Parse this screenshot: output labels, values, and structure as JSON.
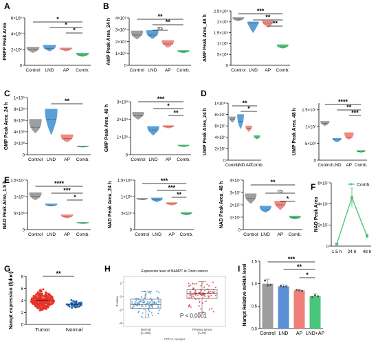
{
  "figure": {
    "background": "#ffffff"
  },
  "colors": {
    "gray": "#9e9e9e",
    "blue": "#5aa0d8",
    "pink": "#f08a80",
    "green": "#4fc47a",
    "tumor": "#e8332a",
    "normal": "#2f6fb0",
    "tumorH": "#e0505a",
    "normalH": "#5a9fd4",
    "barGray": "#9e9e9e",
    "barBlue": "#5b8fd6",
    "barPink": "#f07f7a",
    "barGreen": "#49c67a"
  },
  "chart_data": [
    {
      "panel": "A",
      "type": "violin",
      "ylabel": "PRPP Peak Area",
      "categories": [
        "Control",
        "LND",
        "AP",
        "Comb."
      ],
      "yticks": [
        0,
        2000000,
        4000000,
        6000000
      ],
      "yticklabels": [
        "0",
        "2×10⁶",
        "4×10⁶",
        "6×10⁶"
      ],
      "ylim": [
        0,
        6000000
      ],
      "groups": [
        {
          "mid": 1950000,
          "lo": 1600000,
          "hi": 2300000
        },
        {
          "mid": 2150000,
          "lo": 1800000,
          "hi": 2550000
        },
        {
          "mid": 2050000,
          "lo": 1800000,
          "hi": 2200000
        },
        {
          "mid": 1300000,
          "lo": 1100000,
          "hi": 1550000
        }
      ],
      "brackets": [
        {
          "from": 0,
          "to": 3,
          "label": "*"
        },
        {
          "from": 1,
          "to": 3,
          "label": "*"
        },
        {
          "from": 2,
          "to": 3,
          "label": "*"
        }
      ]
    },
    {
      "panel": "B",
      "type": "violin",
      "ylabel": "AMP Peak Area_24 h",
      "categories": [
        "Control",
        "LND",
        "AP",
        "Comb."
      ],
      "yticks": [
        0,
        1000000000,
        2000000000,
        3000000000,
        4000000000
      ],
      "yticklabels": [
        "0",
        "1×10⁹",
        "2×10⁹",
        "3×10⁹",
        "4×10⁹"
      ],
      "ylim": [
        0,
        4000000000
      ],
      "groups": [
        {
          "mid": 2550000000,
          "lo": 2200000000,
          "hi": 2900000000
        },
        {
          "mid": 2550000000,
          "lo": 2250000000,
          "hi": 2950000000
        },
        {
          "mid": 1800000000,
          "lo": 1500000000,
          "hi": 2100000000
        },
        {
          "mid": 1150000000,
          "lo": 1050000000,
          "hi": 1250000000
        }
      ],
      "brackets": [
        {
          "from": 0,
          "to": 3,
          "label": "**"
        },
        {
          "from": 1,
          "to": 3,
          "label": "**"
        },
        {
          "from": 1,
          "to": 2,
          "label": "ns"
        }
      ]
    },
    {
      "panel": "",
      "type": "violin",
      "ylabel": "AMP Peak Area_48 h",
      "categories": [
        "Control",
        "LND",
        "AP",
        "Comb."
      ],
      "yticks": [
        0,
        500000000,
        1000000000,
        1500000000,
        2000000000,
        2500000000
      ],
      "yticklabels": [
        "0",
        "5×10⁸",
        "1×10⁹",
        "1.5×10⁹",
        "2×10⁹",
        "2.5×10⁹"
      ],
      "ylim": [
        0,
        2500000000
      ],
      "groups": [
        {
          "mid": 2120000000,
          "lo": 2040000000,
          "hi": 2200000000
        },
        {
          "mid": 1950000000,
          "lo": 1500000000,
          "hi": 2000000000
        },
        {
          "mid": 1950000000,
          "lo": 1750000000,
          "hi": 2050000000
        },
        {
          "mid": 850000000,
          "lo": 780000000,
          "hi": 950000000
        }
      ],
      "brackets": [
        {
          "from": 0,
          "to": 3,
          "label": "***"
        },
        {
          "from": 1,
          "to": 3,
          "label": "**"
        },
        {
          "from": 2,
          "to": 3,
          "label": "**"
        }
      ]
    },
    {
      "panel": "C",
      "type": "violin",
      "ylabel": "GMP Peak Area_24 h",
      "categories": [
        "Control",
        "LND",
        "AP",
        "Comb."
      ],
      "yticks": [
        0,
        200000000,
        400000000,
        600000000,
        800000000,
        1000000000
      ],
      "yticklabels": [
        "0",
        "2×10⁸",
        "4×10⁸",
        "6×10⁸",
        "8×10⁸",
        "1×10⁹"
      ],
      "ylim": [
        0,
        1000000000
      ],
      "groups": [
        {
          "mid": 480000000,
          "lo": 380000000,
          "hi": 620000000
        },
        {
          "mid": 620000000,
          "lo": 350000000,
          "hi": 800000000
        },
        {
          "mid": 280000000,
          "lo": 220000000,
          "hi": 350000000
        },
        {
          "mid": 140000000,
          "lo": 130000000,
          "hi": 150000000
        }
      ],
      "brackets": [
        {
          "from": 1,
          "to": 3,
          "label": "**"
        }
      ]
    },
    {
      "panel": "",
      "type": "violin",
      "ylabel": "GMP Peak Area_48 h",
      "categories": [
        "Control",
        "LND",
        "AP",
        "Comb."
      ],
      "yticks": [
        0,
        100000000,
        200000000,
        300000000
      ],
      "yticklabels": [
        "0",
        "1×10⁸",
        "2×10⁸",
        "3×10⁸"
      ],
      "ylim": [
        0,
        300000000
      ],
      "groups": [
        {
          "mid": 220000000,
          "lo": 200000000,
          "hi": 240000000
        },
        {
          "mid": 140000000,
          "lo": 110000000,
          "hi": 160000000
        },
        {
          "mid": 158000000,
          "lo": 150000000,
          "hi": 165000000
        },
        {
          "mid": 50000000,
          "lo": 45000000,
          "hi": 55000000
        }
      ],
      "brackets": [
        {
          "from": 0,
          "to": 3,
          "label": "***"
        },
        {
          "from": 1,
          "to": 3,
          "label": "*"
        },
        {
          "from": 2,
          "to": 3,
          "label": "**"
        }
      ]
    },
    {
      "panel": "D",
      "type": "violin",
      "ylabel": "UMP Peak Area_24 h",
      "categories": [
        "Control",
        "LND",
        "AP",
        "Comb."
      ],
      "yticks": [
        0,
        20000000,
        40000000,
        60000000,
        80000000,
        100000000
      ],
      "yticklabels": [
        "0",
        "2×10⁷",
        "4×10⁷",
        "6×10⁷",
        "8×10⁷",
        "1×10⁸"
      ],
      "ylim": [
        0,
        100000000
      ],
      "groups": [
        {
          "mid": 72000000,
          "lo": 66000000,
          "hi": 76000000
        },
        {
          "mid": 68000000,
          "lo": 55000000,
          "hi": 80000000
        },
        {
          "mid": 56000000,
          "lo": 50000000,
          "hi": 60000000
        },
        {
          "mid": 40000000,
          "lo": 37000000,
          "hi": 43000000
        }
      ],
      "brackets": [
        {
          "from": 0,
          "to": 3,
          "label": "**"
        },
        {
          "from": 1,
          "to": 3,
          "label": "*"
        }
      ]
    },
    {
      "panel": "",
      "type": "violin",
      "ylabel": "UMP Peak Area_48 h",
      "categories": [
        "Control",
        "LND",
        "AP",
        "Comb."
      ],
      "yticks": [
        0,
        5000000,
        10000000,
        15000000
      ],
      "yticklabels": [
        "0",
        "5×10⁶",
        "1×10⁷",
        "1.5×10⁷"
      ],
      "ylim": [
        0,
        17000000
      ],
      "groups": [
        {
          "mid": 11000000,
          "lo": 10200000,
          "hi": 11600000
        },
        {
          "mid": 6000000,
          "lo": 5400000,
          "hi": 6500000
        },
        {
          "mid": 6800000,
          "lo": 6200000,
          "hi": 8200000
        },
        {
          "mid": 2600000,
          "lo": 2300000,
          "hi": 2900000
        }
      ],
      "brackets": [
        {
          "from": 0,
          "to": 3,
          "label": "****"
        },
        {
          "from": 1,
          "to": 3,
          "label": "**"
        },
        {
          "from": 2,
          "to": 3,
          "label": "***"
        }
      ]
    },
    {
      "panel": "E",
      "type": "violin",
      "ylabel": "NAD Peak Area_1.5 h",
      "categories": [
        "Control",
        "LND",
        "AP",
        "Comb."
      ],
      "yticks": [
        0,
        5000000,
        10000000,
        15000000
      ],
      "yticklabels": [
        "0",
        "5×10⁶",
        "1×10⁷",
        "1.5×10⁷"
      ],
      "ylim": [
        0,
        15000000
      ],
      "groups": [
        {
          "mid": 10000000,
          "lo": 9000000,
          "hi": 11200000
        },
        {
          "mid": 7400000,
          "lo": 7100000,
          "hi": 7800000
        },
        {
          "mid": 4000000,
          "lo": 3500000,
          "hi": 4500000
        },
        {
          "mid": 2000000,
          "lo": 1800000,
          "hi": 2200000
        }
      ],
      "brackets": [
        {
          "from": 0,
          "to": 3,
          "label": "****"
        },
        {
          "from": 1,
          "to": 3,
          "label": "***"
        },
        {
          "from": 2,
          "to": 3,
          "label": "*"
        }
      ]
    },
    {
      "panel": "",
      "type": "violin",
      "ylabel": "NAD Peak Area_24 h",
      "categories": [
        "Control",
        "LND",
        "AP",
        "Comb."
      ],
      "yticks": [
        0,
        50000000,
        100000000,
        150000000
      ],
      "yticklabels": [
        "0",
        "5×10⁷",
        "1×10⁸",
        "1.5×10⁸"
      ],
      "ylim": [
        0,
        150000000
      ],
      "groups": [
        {
          "mid": 92000000,
          "lo": 90000000,
          "hi": 95000000
        },
        {
          "mid": 90000000,
          "lo": 84000000,
          "hi": 96000000
        },
        {
          "mid": 78000000,
          "lo": 74000000,
          "hi": 82000000
        },
        {
          "mid": 48000000,
          "lo": 44000000,
          "hi": 52000000
        }
      ],
      "brackets": [
        {
          "from": 0,
          "to": 3,
          "label": "***"
        },
        {
          "from": 1,
          "to": 3,
          "label": "***"
        },
        {
          "from": 2,
          "to": 3,
          "label": "**"
        }
      ]
    },
    {
      "panel": "",
      "type": "violin",
      "ylabel": "NAD Peak Area_48 h",
      "categories": [
        "Control",
        "LND",
        "AP",
        "Comb."
      ],
      "yticks": [
        0,
        10000000,
        20000000,
        30000000,
        40000000
      ],
      "yticklabels": [
        "0",
        "1×10⁷",
        "2×10⁷",
        "3×10⁷",
        "4×10⁷"
      ],
      "ylim": [
        0,
        40000000
      ],
      "groups": [
        {
          "mid": 25000000,
          "lo": 21000000,
          "hi": 29000000
        },
        {
          "mid": 16000000,
          "lo": 14000000,
          "hi": 19000000
        },
        {
          "mid": 20000000,
          "lo": 16000000,
          "hi": 23000000
        },
        {
          "mid": 9500000,
          "lo": 8500000,
          "hi": 11000000
        }
      ],
      "brackets": [
        {
          "from": 0,
          "to": 3,
          "label": "**"
        },
        {
          "from": 1,
          "to": 3,
          "label": "ns"
        },
        {
          "from": 2,
          "to": 3,
          "label": "*"
        }
      ]
    },
    {
      "panel": "F",
      "type": "line",
      "ylabel": "NAD Peak Area",
      "x": [
        "1.5 h",
        "24 h",
        "48 h"
      ],
      "series": [
        {
          "name": "Comb.",
          "values": [
            2000000,
            46000000,
            9500000
          ],
          "err": [
            300000,
            9000000,
            2000000
          ]
        }
      ],
      "yticks": [
        0,
        20000000,
        40000000,
        60000000
      ],
      "yticklabels": [
        "0",
        "2×10⁷",
        "4×10⁷",
        "6×10⁷"
      ],
      "ylim": [
        0,
        60000000
      ],
      "legend": "top-right"
    },
    {
      "panel": "G",
      "type": "scatter",
      "ylabel": "Nampt expression (fpkm)",
      "categories": [
        "Tumor",
        "Normal"
      ],
      "yticks": [
        0,
        2,
        4,
        6,
        8
      ],
      "yticklabels": [
        "0",
        "2",
        "4",
        "6",
        "8"
      ],
      "ylim": [
        0,
        8
      ],
      "groups": [
        {
          "mean": 4.0,
          "sd": 1.0,
          "lo": 1.0,
          "hi": 7.0,
          "n": 260
        },
        {
          "mean": 3.4,
          "sd": 0.45,
          "lo": 2.4,
          "hi": 4.7,
          "n": 45
        }
      ],
      "brackets": [
        {
          "from": 0,
          "to": 1,
          "label": "**"
        }
      ]
    },
    {
      "panel": "H",
      "type": "box",
      "title": "Expression level of NAMPT in Colon cancer",
      "ylabel": "Z-value",
      "xlabel": "CPTAC samples",
      "categories": [
        "Normal\n(n=100)",
        "Primary tumor\n(n=97)"
      ],
      "yticks": [
        -4,
        -2,
        0,
        2
      ],
      "yticklabels": [
        "-4",
        "-2",
        "0",
        "2"
      ],
      "ylim": [
        -4.5,
        3
      ],
      "groups": [
        {
          "q1": -1.8,
          "median": -1.2,
          "q3": -0.4,
          "lo": -3.2,
          "hi": 0.8
        },
        {
          "q1": -0.3,
          "median": 0.4,
          "q3": 1.0,
          "lo": -2.4,
          "hi": 2.2
        }
      ],
      "annotation": "P < 0.0001"
    },
    {
      "panel": "I",
      "type": "bar",
      "ylabel": "Nampt Relative mRNA level",
      "categories": [
        "Control",
        "LND",
        "AP",
        "LND+AP"
      ],
      "values": [
        1.0,
        0.94,
        0.85,
        0.72
      ],
      "err": [
        0.1,
        0.03,
        0.02,
        0.05
      ],
      "yticks": [
        0,
        0.5,
        1.0,
        1.5
      ],
      "yticklabels": [
        "0.0",
        "0.5",
        "1.0",
        "1.5"
      ],
      "ylim": [
        0,
        1.5
      ],
      "brackets": [
        {
          "from": 0,
          "to": 3,
          "label": "***"
        },
        {
          "from": 1,
          "to": 3,
          "label": "**"
        },
        {
          "from": 2,
          "to": 3,
          "label": "*"
        }
      ]
    }
  ]
}
